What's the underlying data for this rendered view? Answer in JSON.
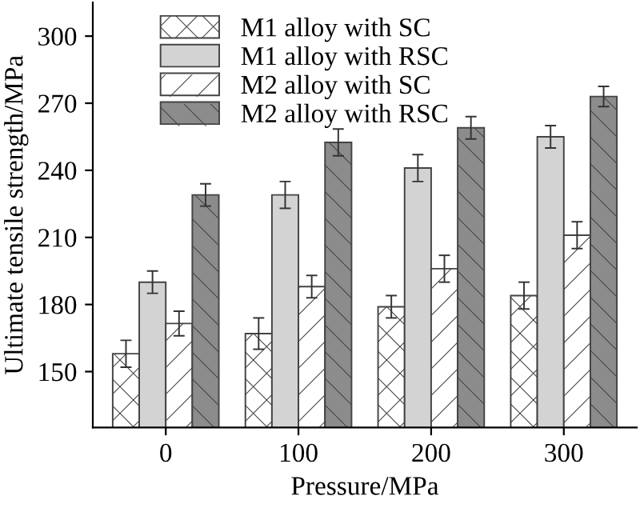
{
  "chart_data": {
    "type": "bar",
    "xlabel": "Pressure/MPa",
    "ylabel": "Ultimate tensile strength/MPa",
    "categories": [
      "0",
      "100",
      "200",
      "300"
    ],
    "series": [
      {
        "name": "M1 alloy with SC",
        "color": "#ffffff",
        "values": [
          158,
          167,
          179,
          184
        ],
        "errors": [
          6,
          7,
          5,
          6
        ]
      },
      {
        "name": "M1 alloy with RSC",
        "color": "#d3d3d3",
        "values": [
          190,
          229,
          241,
          255
        ],
        "errors": [
          5,
          6,
          6,
          5
        ]
      },
      {
        "name": "M2 alloy with SC",
        "color": "#ffffff",
        "values": [
          171.5,
          188,
          196,
          211
        ],
        "errors": [
          5.5,
          5,
          6,
          6
        ]
      },
      {
        "name": "M2 alloy with RSC",
        "color": "#8c8c8c",
        "values": [
          229,
          252.5,
          259,
          273
        ],
        "errors": [
          5,
          6,
          5,
          4.5
        ]
      }
    ],
    "ylim": [
      125,
      315
    ],
    "yticks": [
      150,
      180,
      210,
      240,
      270,
      300
    ],
    "legend": "top left",
    "grid": false
  }
}
